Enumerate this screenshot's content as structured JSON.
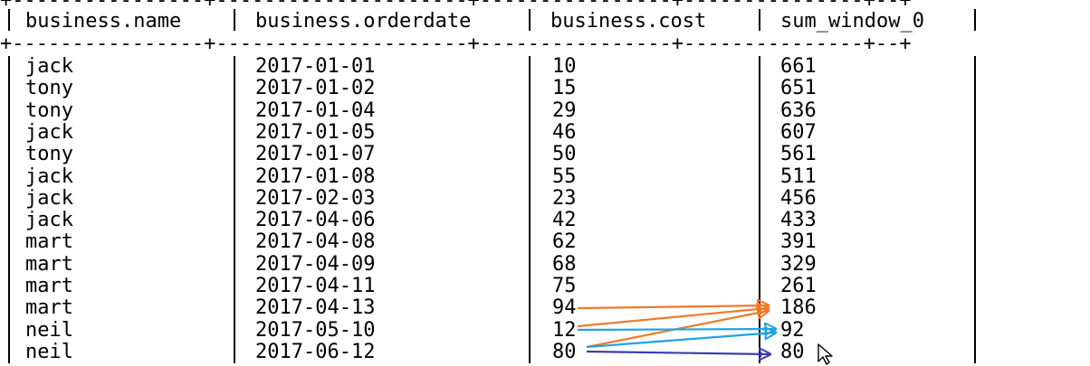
{
  "table": {
    "columns": [
      "business.name",
      "business.orderdate",
      "business.cost",
      "sum_window_0"
    ],
    "rows": [
      {
        "name": "jack",
        "orderdate": "2017-01-01",
        "cost": "10",
        "sum": "661"
      },
      {
        "name": "tony",
        "orderdate": "2017-01-02",
        "cost": "15",
        "sum": "651"
      },
      {
        "name": "tony",
        "orderdate": "2017-01-04",
        "cost": "29",
        "sum": "636"
      },
      {
        "name": "jack",
        "orderdate": "2017-01-05",
        "cost": "46",
        "sum": "607"
      },
      {
        "name": "tony",
        "orderdate": "2017-01-07",
        "cost": "50",
        "sum": "561"
      },
      {
        "name": "jack",
        "orderdate": "2017-01-08",
        "cost": "55",
        "sum": "511"
      },
      {
        "name": "jack",
        "orderdate": "2017-02-03",
        "cost": "23",
        "sum": "456"
      },
      {
        "name": "jack",
        "orderdate": "2017-04-06",
        "cost": "42",
        "sum": "433"
      },
      {
        "name": "mart",
        "orderdate": "2017-04-08",
        "cost": "62",
        "sum": "391"
      },
      {
        "name": "mart",
        "orderdate": "2017-04-09",
        "cost": "68",
        "sum": "329"
      },
      {
        "name": "mart",
        "orderdate": "2017-04-11",
        "cost": "75",
        "sum": "261"
      },
      {
        "name": "mart",
        "orderdate": "2017-04-13",
        "cost": "94",
        "sum": "186"
      },
      {
        "name": "neil",
        "orderdate": "2017-05-10",
        "cost": "12",
        "sum": "92"
      },
      {
        "name": "neil",
        "orderdate": "2017-06-12",
        "cost": "80",
        "sum": "80"
      }
    ]
  },
  "annotation_colors": {
    "orange": "#f07a2a",
    "blue": "#1fa3e0",
    "purple": "#3b3bb0"
  },
  "cursor_icon": "mouse-pointer-icon"
}
